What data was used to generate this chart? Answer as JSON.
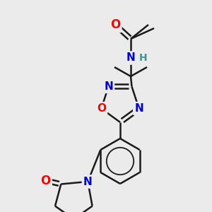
{
  "background_color": "#ebebeb",
  "bond_color": "#1a1a1a",
  "bond_width": 1.8,
  "atom_colors": {
    "O": "#ff0000",
    "N": "#0000cc",
    "H": "#4a9090",
    "C": "#1a1a1a"
  },
  "font_size": 11
}
